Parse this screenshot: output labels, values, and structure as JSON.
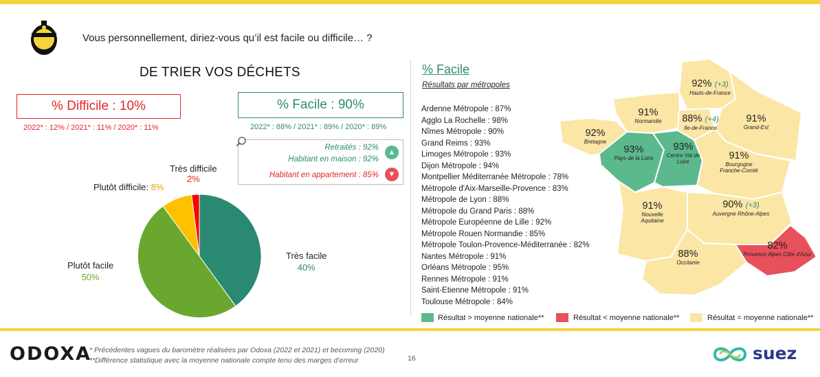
{
  "header": {
    "question": "Vous personnellement, diriez-vous qu’il est facile ou difficile… ?"
  },
  "left": {
    "section_title": "DE TRIER VOS DÉCHETS",
    "difficile_box": "% Difficile : 10%",
    "difficile_history": "2022* : 12% / 2021* : 11% / 2020* : 11%",
    "facile_box": "% Facile : 90%",
    "facile_history": "2022* : 88% / 2021* : 89% / 2020* : 89%",
    "subgroups": {
      "positive": [
        "Retraités : 92%",
        "Habitant en maison : 92%"
      ],
      "negative": [
        "Habitant en appartement : 85%"
      ]
    }
  },
  "chart_data": {
    "type": "pie",
    "slices": [
      {
        "label": "Très facile",
        "value": 40,
        "display": "40%",
        "color": "#2a8a71"
      },
      {
        "label": "Plutôt facile",
        "value": 50,
        "display": "50%",
        "color": "#6aa72e"
      },
      {
        "label": "Plutôt difficile",
        "value": 8,
        "display": "8%",
        "color": "#ffc000"
      },
      {
        "label": "Très difficile",
        "value": 2,
        "display": "2%",
        "color": "#ff0000"
      }
    ]
  },
  "map": {
    "title": "% Facile",
    "subtitle": "Résultats par métropoles",
    "metropoles": [
      "Ardenne Métropole : 87%",
      "Agglo La Rochelle : 98%",
      "Nîmes Métropole : 90%",
      "Grand Reims : 93%",
      "Limoges Métropole : 93%",
      "Dijon Métropole : 94%",
      "Montpellier Méditerranée Métropole : 78%",
      "Métropole d'Aix-Marseille-Provence : 83%",
      "Métropole de Lyon : 88%",
      "Métropole du Grand Paris : 88%",
      "Métropole Européenne de Lille : 92%",
      "Métropole Rouen Normandie : 85%",
      "Métropole Toulon-Provence-Méditerranée : 82%",
      "Nantes Métropole : 91%",
      "Orléans Métropole : 95%",
      "Rennes Métropole : 91%",
      "Saint-Etienne Métropole : 91%",
      "Toulouse Métropole : 84%"
    ],
    "regions": [
      {
        "pct": "92%",
        "delta": "(+3)",
        "name": "Hauts-de-France",
        "status": "equal"
      },
      {
        "pct": "91%",
        "delta": "",
        "name": "Normandie",
        "status": "equal"
      },
      {
        "pct": "88%",
        "delta": "(+4)",
        "name": "Ile-de-France",
        "status": "equal"
      },
      {
        "pct": "91%",
        "delta": "",
        "name": "Grand-Est",
        "status": "equal"
      },
      {
        "pct": "92%",
        "delta": "",
        "name": "Bretagne",
        "status": "equal"
      },
      {
        "pct": "93%",
        "delta": "",
        "name": "Pays de la Loire",
        "status": "above"
      },
      {
        "pct": "93%",
        "delta": "",
        "name": "Centre Val de Loire",
        "status": "above"
      },
      {
        "pct": "91%",
        "delta": "",
        "name": "Bourgogne Franche-Comté",
        "status": "equal"
      },
      {
        "pct": "91%",
        "delta": "",
        "name": "Nouvelle Aquitaine",
        "status": "equal"
      },
      {
        "pct": "90%",
        "delta": "(+3)",
        "name": "Auvergne Rhône-Alpes",
        "status": "equal"
      },
      {
        "pct": "88%",
        "delta": "",
        "name": "Occitanie",
        "status": "equal"
      },
      {
        "pct": "82%",
        "delta": "",
        "name": "Provence Alpes Côte d'Azur",
        "status": "below"
      }
    ],
    "legend": [
      {
        "label": "Résultat > moyenne nationale**",
        "color": "#5bb98d"
      },
      {
        "label": "Résultat < moyenne nationale**",
        "color": "#e8505b"
      },
      {
        "label": "Résultat = moyenne nationale**",
        "color": "#fbe6a6"
      }
    ]
  },
  "footer": {
    "brand": "ODOXA",
    "partner": "suez",
    "note1": "* Précédentes vagues du baromètre réalisées par Odoxa (2022 et 2021) et becoming (2020)",
    "note2": "**Différence statistique avec la moyenne nationale compte tenu des marges d’erreur",
    "page": "16"
  }
}
